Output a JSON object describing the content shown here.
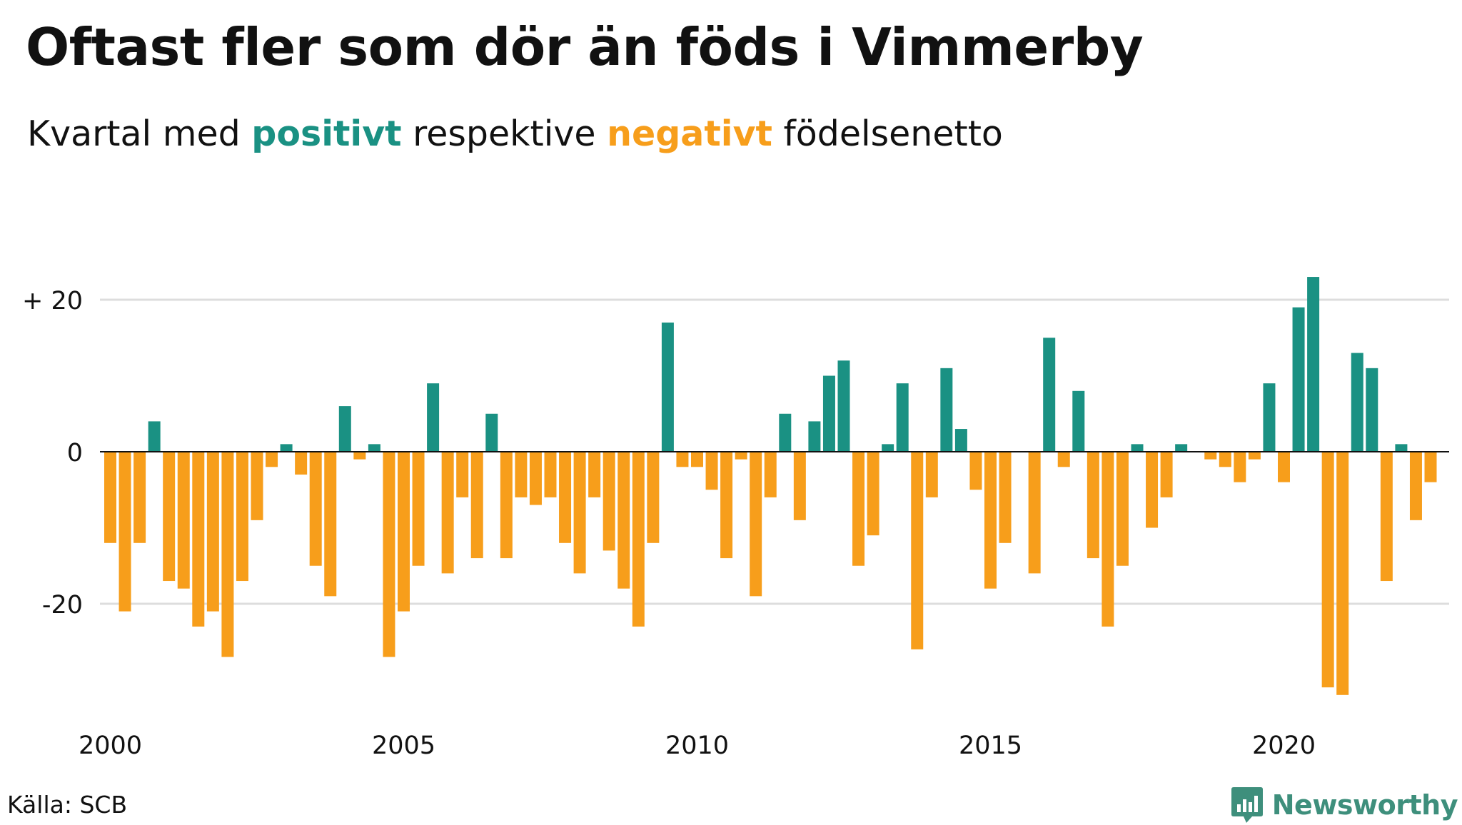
{
  "title": "Oftast fler som dör än föds i Vimmerby",
  "subtitle": {
    "prefix": "Kvartal med ",
    "positive_word": "positivt",
    "middle": " respektive ",
    "negative_word": "negativt",
    "suffix": " födelsenetto"
  },
  "source": "Källa: SCB",
  "brand": {
    "name": "Newsworthy",
    "icon": "bar-chart-speech-bubble-icon"
  },
  "colors": {
    "positive": "#1a9183",
    "negative": "#f79e1b",
    "grid": "#dddddd",
    "brand": "#3e8f7c"
  },
  "chart_data": {
    "type": "bar",
    "xlabel": "",
    "ylabel": "",
    "ylim": [
      -33,
      24
    ],
    "yticks": [
      {
        "value": 20,
        "label": "+ 20"
      },
      {
        "value": 0,
        "label": "0"
      },
      {
        "value": -20,
        "label": "-20"
      }
    ],
    "xticks": [
      "2000",
      "2005",
      "2010",
      "2015",
      "2020"
    ],
    "grid": true,
    "start": "2000Q1",
    "values": [
      -12,
      -21,
      -12,
      4,
      -17,
      -18,
      -23,
      -21,
      -27,
      -17,
      -9,
      -2,
      1,
      -3,
      -15,
      -19,
      6,
      -1,
      1,
      -27,
      -21,
      -15,
      9,
      -16,
      -6,
      -14,
      5,
      -14,
      -6,
      -7,
      -6,
      -12,
      -16,
      -6,
      -13,
      -18,
      -23,
      -12,
      17,
      -2,
      -2,
      -5,
      -14,
      -1,
      -19,
      -6,
      5,
      -9,
      4,
      10,
      12,
      -15,
      -11,
      1,
      9,
      -26,
      -6,
      11,
      3,
      -5,
      -18,
      -12,
      0,
      -16,
      15,
      -2,
      8,
      -14,
      -23,
      -15,
      1,
      -10,
      -6,
      1,
      0,
      -1,
      -2,
      -4,
      -1,
      9,
      -4,
      19,
      23,
      -31,
      -32,
      13,
      11,
      -17,
      1,
      -9,
      -4
    ]
  }
}
